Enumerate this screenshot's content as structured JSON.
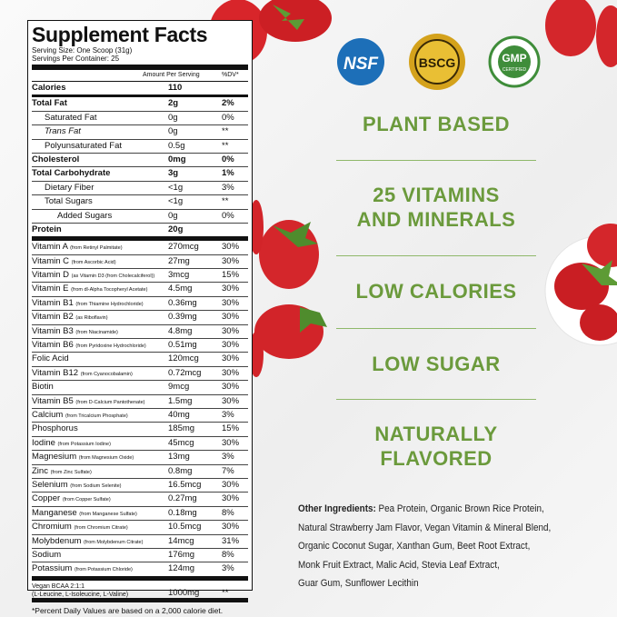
{
  "facts": {
    "title": "Supplement Facts",
    "serving_size": "Serving Size: One Scoop (31g)",
    "servings_per_container": "Servings Per Container: 25",
    "header": [
      "Amount Per Serving",
      "%DV*"
    ],
    "rows": [
      {
        "name": "Calories",
        "amount": "110",
        "bold": true,
        "level": 0,
        "rule_after": "medium"
      },
      {
        "name": "Total Fat",
        "amount": "2g",
        "dv": "2%",
        "bold": true,
        "level": 0
      },
      {
        "name": "Saturated Fat",
        "amount": "0g",
        "dv": "0%",
        "level": 1
      },
      {
        "name": "Trans Fat",
        "amount": "0g",
        "dv": "**",
        "level": 1,
        "italic": true
      },
      {
        "name": "Polyunsaturated Fat",
        "amount": "0.5g",
        "dv": "**",
        "level": 1
      },
      {
        "name": "Cholesterol",
        "amount": "0mg",
        "dv": "0%",
        "bold": true,
        "level": 0
      },
      {
        "name": "Total Carbohydrate",
        "amount": "3g",
        "dv": "1%",
        "bold": true,
        "level": 0
      },
      {
        "name": "Dietary Fiber",
        "amount": "<1g",
        "dv": "3%",
        "level": 1
      },
      {
        "name": "Total Sugars",
        "amount": "<1g",
        "dv": "**",
        "level": 1
      },
      {
        "name": "Added Sugars",
        "amount": "0g",
        "dv": "0%",
        "level": 2
      },
      {
        "name": "Protein",
        "amount": "20g",
        "bold": true,
        "level": 0,
        "rule_after": "thick"
      },
      {
        "name": "Vitamin A",
        "source": "(from Retinyl Palmitate)",
        "amount": "270mcg",
        "dv": "30%",
        "level": 0
      },
      {
        "name": "Vitamin C",
        "source": "(from Ascorbic Acid)",
        "amount": "27mg",
        "dv": "30%",
        "level": 0
      },
      {
        "name": "Vitamin D",
        "source": "(as Vitamin D3 (from Cholecalciferol))",
        "amount": "3mcg",
        "dv": "15%",
        "level": 0
      },
      {
        "name": "Vitamin E",
        "source": "(from dl-Alpha Tocopheryl Acetate)",
        "amount": "4.5mg",
        "dv": "30%",
        "level": 0
      },
      {
        "name": "Vitamin B1",
        "source": "(from Thiamine Hydrochloride)",
        "amount": "0.36mg",
        "dv": "30%",
        "level": 0
      },
      {
        "name": "Vitamin B2",
        "source": "(as Riboflavin)",
        "amount": "0.39mg",
        "dv": "30%",
        "level": 0
      },
      {
        "name": "Vitamin B3",
        "source": "(from Niacinamide)",
        "amount": "4.8mg",
        "dv": "30%",
        "level": 0
      },
      {
        "name": "Vitamin B6",
        "source": "(from Pyridoxine Hydrochloride)",
        "amount": "0.51mg",
        "dv": "30%",
        "level": 0
      },
      {
        "name": "Folic Acid",
        "amount": "120mcg",
        "dv": "30%",
        "level": 0
      },
      {
        "name": "Vitamin B12",
        "source": "(from Cyanocobalamin)",
        "amount": "0.72mcg",
        "dv": "30%",
        "level": 0
      },
      {
        "name": "Biotin",
        "amount": "9mcg",
        "dv": "30%",
        "level": 0
      },
      {
        "name": "Vitamin B5",
        "source": "(from D-Calcium Pantothenate)",
        "amount": "1.5mg",
        "dv": "30%",
        "level": 0
      },
      {
        "name": "Calcium",
        "source": "(from Tricalcium Phosphate)",
        "amount": "40mg",
        "dv": "3%",
        "level": 0
      },
      {
        "name": "Phosphorus",
        "amount": "185mg",
        "dv": "15%",
        "level": 0
      },
      {
        "name": "Iodine",
        "source": "(from Potassium Iodine)",
        "amount": "45mcg",
        "dv": "30%",
        "level": 0
      },
      {
        "name": "Magnesium",
        "source": "(from Magnesium Oxide)",
        "amount": "13mg",
        "dv": "3%",
        "level": 0
      },
      {
        "name": "Zinc",
        "source": "(from Zinc Sulfate)",
        "amount": "0.8mg",
        "dv": "7%",
        "level": 0
      },
      {
        "name": "Selenium",
        "source": "(from Sodium Selenite)",
        "amount": "16.5mcg",
        "dv": "30%",
        "level": 0
      },
      {
        "name": "Copper",
        "source": "(from Copper Sulfate)",
        "amount": "0.27mg",
        "dv": "30%",
        "level": 0
      },
      {
        "name": "Manganese",
        "source": "(from Manganese Sulfate)",
        "amount": "0.18mg",
        "dv": "8%",
        "level": 0
      },
      {
        "name": "Chromium",
        "source": "(from Chromium Citrate)",
        "amount": "10.5mcg",
        "dv": "30%",
        "level": 0
      },
      {
        "name": "Molybdenum",
        "source": "(from Molybdenum Citrate)",
        "amount": "14mcg",
        "dv": "31%",
        "level": 0
      },
      {
        "name": "Sodium",
        "amount": "176mg",
        "dv": "8%",
        "level": 0
      },
      {
        "name": "Potassium",
        "source": "(from Potassium Chloride)",
        "amount": "124mg",
        "dv": "3%",
        "level": 0,
        "rule_after": "thick"
      },
      {
        "name": "Vegan BCAA 2:1:1",
        "source": "(L-Leucine, L-Isoleucine, L-Valine)",
        "amount": "1000mg",
        "dv": "**",
        "level": 0,
        "small": true,
        "rule_after": "thick"
      }
    ],
    "footnotes": [
      "*Percent Daily Values are based on a 2,000 calorie diet.",
      "**Daily Value not established"
    ]
  },
  "badges": {
    "nsf": "NSF",
    "bscg": "BSCG",
    "gmp": "GMP",
    "gmp_sub": "CERTIFIED"
  },
  "claims": [
    [
      "PLANT BASED"
    ],
    [
      "25 VITAMINS",
      "AND MINERALS"
    ],
    [
      "LOW CALORIES"
    ],
    [
      "LOW SUGAR"
    ],
    [
      "NATURALLY",
      "FLAVORED"
    ]
  ],
  "ingredients": {
    "label": "Other Ingredients:",
    "lines": [
      " Pea Protein, Organic Brown Rice Protein,",
      "Natural Strawberry Jam Flavor, Vegan Vitamin & Mineral Blend,",
      "Organic Coconut Sugar, Xanthan Gum, Beet Root Extract,",
      "Monk Fruit Extract, Malic Acid, Stevia Leaf Extract,",
      "Guar Gum, Sunflower Lecithin"
    ]
  }
}
